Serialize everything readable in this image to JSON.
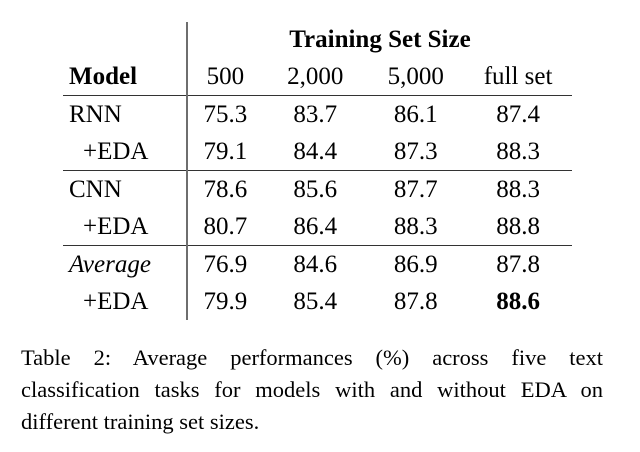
{
  "table": {
    "column_group_title": "Training Set Size",
    "headers": [
      "Model",
      "500",
      "2,000",
      "5,000",
      "full set"
    ],
    "rows": [
      {
        "model": "RNN",
        "values": [
          "75.3",
          "83.7",
          "86.1",
          "87.4"
        ]
      },
      {
        "model": "+EDA",
        "values": [
          "79.1",
          "84.4",
          "87.3",
          "88.3"
        ]
      },
      {
        "model": "CNN",
        "values": [
          "78.6",
          "85.6",
          "87.7",
          "88.3"
        ]
      },
      {
        "model": "+EDA",
        "values": [
          "80.7",
          "86.4",
          "88.3",
          "88.8"
        ]
      },
      {
        "model": "Average",
        "values": [
          "76.9",
          "84.6",
          "86.9",
          "87.8"
        ]
      },
      {
        "model": "+EDA",
        "values": [
          "79.9",
          "85.4",
          "87.8",
          "88.6"
        ]
      }
    ],
    "bold_cell": {
      "row": 5,
      "col": 3
    }
  },
  "caption": "Table 2: Average performances (%) across five text classification tasks for models with and without EDA on different training set sizes.",
  "chart_data": {
    "type": "table",
    "title": "Table 2: Average performances (%) across five text classification tasks for models with and without EDA on different training set sizes.",
    "column_group": "Training Set Size",
    "columns": [
      "Model",
      "500",
      "2,000",
      "5,000",
      "full set"
    ],
    "categories": [
      "500",
      "2,000",
      "5,000",
      "full set"
    ],
    "series": [
      {
        "name": "RNN",
        "values": [
          75.3,
          83.7,
          86.1,
          87.4
        ]
      },
      {
        "name": "RNN +EDA",
        "values": [
          79.1,
          84.4,
          87.3,
          88.3
        ]
      },
      {
        "name": "CNN",
        "values": [
          78.6,
          85.6,
          87.7,
          88.3
        ]
      },
      {
        "name": "CNN +EDA",
        "values": [
          80.7,
          86.4,
          88.3,
          88.8
        ]
      },
      {
        "name": "Average",
        "values": [
          76.9,
          84.6,
          86.9,
          87.8
        ]
      },
      {
        "name": "Average +EDA",
        "values": [
          79.9,
          85.4,
          87.8,
          88.6
        ]
      }
    ],
    "highlighted": {
      "series": "Average +EDA",
      "category": "full set",
      "value": 88.6
    }
  }
}
